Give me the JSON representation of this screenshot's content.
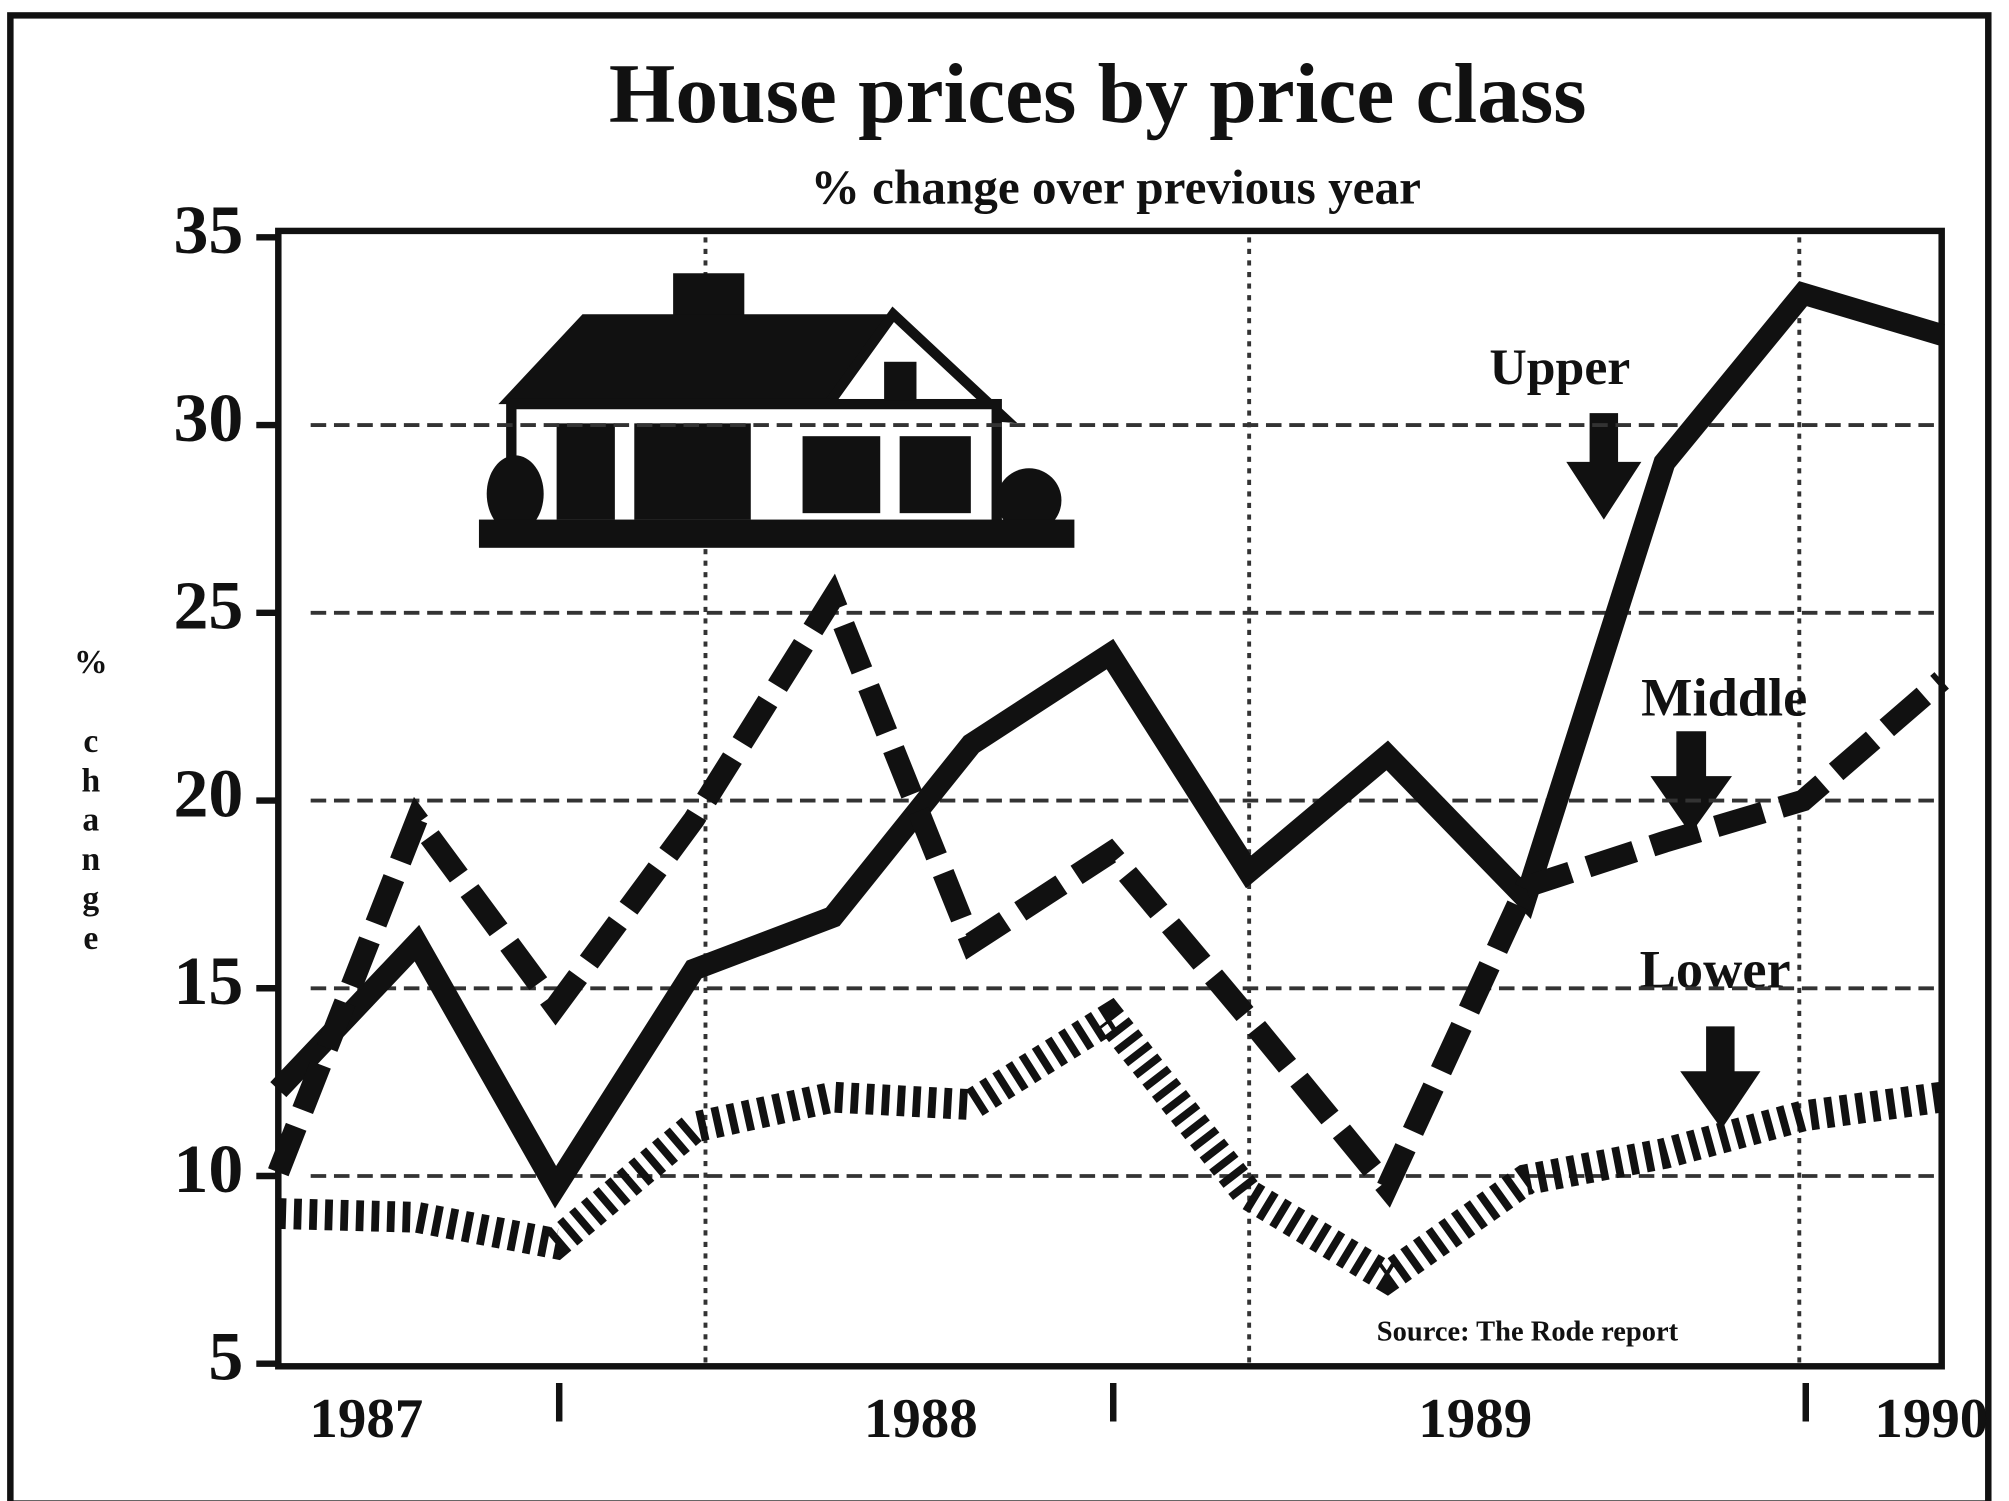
{
  "chart_data": {
    "type": "line",
    "title": "House prices by price class",
    "subtitle": "% change over previous year",
    "y_label": "% change",
    "x": [
      1987,
      1987.25,
      1987.5,
      1987.75,
      1988,
      1988.25,
      1988.5,
      1988.75,
      1989,
      1989.25,
      1989.5,
      1989.75,
      1990
    ],
    "xlim": [
      1987,
      1990
    ],
    "xticks": [
      1987,
      1988,
      1989,
      1990
    ],
    "ylim": [
      5,
      35
    ],
    "yticks": [
      5,
      10,
      15,
      20,
      25,
      30,
      35
    ],
    "grid": true,
    "series": [
      {
        "name": "Upper",
        "color": "#111111",
        "style": "solid",
        "values": [
          12.3,
          16.2,
          9.7,
          15.5,
          16.9,
          21.5,
          23.9,
          18.1,
          21.2,
          17.4,
          29.0,
          33.5,
          32.4
        ]
      },
      {
        "name": "Middle",
        "color": "#111111",
        "style": "dashed",
        "values": [
          10.1,
          19.5,
          14.5,
          19.5,
          25.4,
          16.2,
          18.6,
          14.2,
          9.7,
          17.7,
          18.9,
          20.0,
          23.2
        ]
      },
      {
        "name": "Lower",
        "color": "#111111",
        "style": "dotted",
        "values": [
          9.0,
          8.9,
          8.2,
          11.3,
          12.1,
          11.9,
          14.2,
          9.5,
          7.3,
          9.9,
          10.6,
          11.6,
          12.1
        ]
      }
    ],
    "source": "Source: The Rode report"
  }
}
